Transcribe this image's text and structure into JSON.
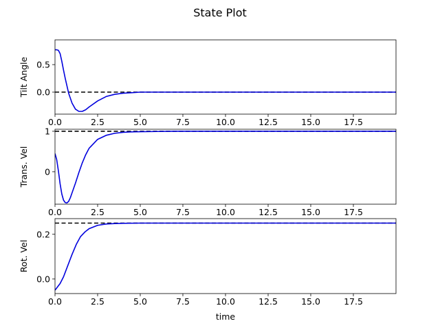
{
  "title": "State Plot",
  "colors": {
    "signal": "#0000dd",
    "reference": "#000000"
  },
  "chart_data": [
    {
      "type": "line",
      "ylabel": "Tilt Angle",
      "xlabel": "",
      "xlim": [
        0,
        20
      ],
      "ylim": [
        -0.4,
        0.95
      ],
      "xticks": [
        0.0,
        2.5,
        5.0,
        7.5,
        10.0,
        12.5,
        15.0,
        17.5
      ],
      "xtick_labels": [
        "0.0",
        "2.5",
        "5.0",
        "7.5",
        "10.0",
        "12.5",
        "15.0",
        "17.5"
      ],
      "yticks": [
        0.0,
        0.5
      ],
      "ytick_labels": [
        "0.0",
        "0.5"
      ],
      "reference": 0.0,
      "x": [
        0,
        0.1,
        0.2,
        0.3,
        0.4,
        0.5,
        0.6,
        0.8,
        1.0,
        1.2,
        1.4,
        1.6,
        1.8,
        2.0,
        2.5,
        3.0,
        3.5,
        4.0,
        4.5,
        5.0,
        6.0,
        8.0,
        12.0,
        16.0,
        20.0
      ],
      "y": [
        0.77,
        0.77,
        0.76,
        0.7,
        0.56,
        0.4,
        0.25,
        -0.02,
        -0.2,
        -0.31,
        -0.35,
        -0.35,
        -0.32,
        -0.27,
        -0.16,
        -0.08,
        -0.04,
        -0.02,
        -0.01,
        0.0,
        0.0,
        0.0,
        0.0,
        0.0,
        0.0
      ]
    },
    {
      "type": "line",
      "ylabel": "Trans. Vel",
      "xlabel": "",
      "xlim": [
        0,
        20
      ],
      "ylim": [
        -0.8,
        1.05
      ],
      "xticks": [
        0.0,
        2.5,
        5.0,
        7.5,
        10.0,
        12.5,
        15.0,
        17.5
      ],
      "xtick_labels": [
        "0.0",
        "2.5",
        "5.0",
        "7.5",
        "10.0",
        "12.5",
        "15.0",
        "17.5"
      ],
      "yticks": [
        0,
        1
      ],
      "ytick_labels": [
        "0",
        "1"
      ],
      "reference": 1.0,
      "x": [
        0,
        0.1,
        0.2,
        0.3,
        0.4,
        0.5,
        0.6,
        0.7,
        0.8,
        0.9,
        1.0,
        1.2,
        1.4,
        1.6,
        1.8,
        2.0,
        2.5,
        3.0,
        3.5,
        4.0,
        4.5,
        5.0,
        6.0,
        7.0,
        8.0,
        12.0,
        16.0,
        20.0
      ],
      "y": [
        0.45,
        0.3,
        0.02,
        -0.3,
        -0.55,
        -0.7,
        -0.76,
        -0.77,
        -0.73,
        -0.64,
        -0.52,
        -0.28,
        -0.02,
        0.22,
        0.42,
        0.58,
        0.8,
        0.9,
        0.95,
        0.975,
        0.985,
        0.99,
        0.995,
        1.0,
        1.0,
        1.0,
        1.0,
        1.0
      ]
    },
    {
      "type": "line",
      "ylabel": "Rot. Vel",
      "xlabel": "time",
      "xlim": [
        0,
        20
      ],
      "ylim": [
        -0.065,
        0.27
      ],
      "xticks": [
        0.0,
        2.5,
        5.0,
        7.5,
        10.0,
        12.5,
        15.0,
        17.5
      ],
      "xtick_labels": [
        "0.0",
        "2.5",
        "5.0",
        "7.5",
        "10.0",
        "12.5",
        "15.0",
        "17.5"
      ],
      "yticks": [
        0.0,
        0.2
      ],
      "ytick_labels": [
        "0.0",
        "0.2"
      ],
      "reference": 0.25,
      "x": [
        0,
        0.1,
        0.2,
        0.3,
        0.5,
        0.75,
        1.0,
        1.25,
        1.5,
        1.75,
        2.0,
        2.5,
        3.0,
        3.5,
        4.0,
        5.0,
        6.0,
        8.0,
        12.0,
        16.0,
        20.0
      ],
      "y": [
        -0.05,
        -0.04,
        -0.03,
        -0.02,
        0.01,
        0.06,
        0.11,
        0.155,
        0.19,
        0.21,
        0.225,
        0.24,
        0.246,
        0.248,
        0.249,
        0.25,
        0.25,
        0.25,
        0.25,
        0.25,
        0.25
      ]
    }
  ]
}
